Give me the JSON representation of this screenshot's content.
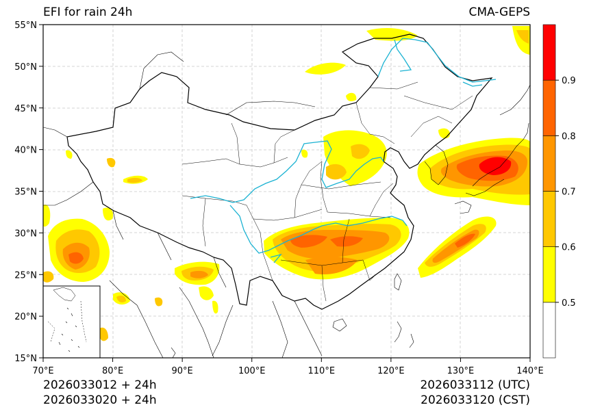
{
  "title": "EFI for rain 24h",
  "model": "CMA-GEPS",
  "init_utc": "2026033012 + 24h",
  "init_cst": "2026033020 + 24h",
  "valid_utc": "2026033112 (UTC)",
  "valid_cst": "2026033120 (CST)",
  "axes": {
    "lon_ticks": [
      "70°E",
      "80°E",
      "90°E",
      "100°E",
      "110°E",
      "120°E",
      "130°E",
      "140°E"
    ],
    "lat_ticks": [
      "15°N",
      "20°N",
      "25°N",
      "30°N",
      "35°N",
      "40°N",
      "45°N",
      "50°N",
      "55°N"
    ],
    "lon_range": [
      70,
      140
    ],
    "lat_range": [
      15,
      55
    ]
  },
  "colorbar": {
    "labels": [
      "0.5",
      "0.6",
      "0.7",
      "0.8",
      "0.9"
    ],
    "colors": [
      "#ffffff",
      "#ffff00",
      "#ffc800",
      "#ff9600",
      "#ff6400",
      "#ff0000"
    ]
  },
  "colors": {
    "river": "#1ab2d2",
    "border": "#000000",
    "grid": "#c8c8c8"
  }
}
